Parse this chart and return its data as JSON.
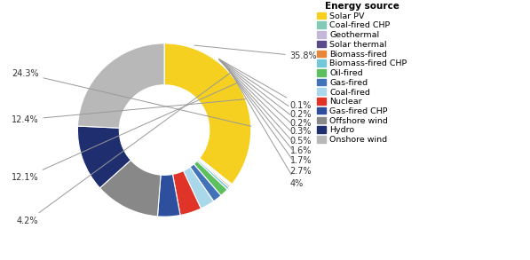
{
  "title": "Energy source",
  "labels": [
    "Solar PV",
    "Coal-fired CHP",
    "Geothermal",
    "Solar thermal",
    "Biomass-fired",
    "Biomass-fired CHP",
    "Oil-fired",
    "Gas-fired",
    "Coal-fired",
    "Nuclear",
    "Gas-fired CHP",
    "Offshore wind",
    "Hydro",
    "Onshore wind"
  ],
  "values": [
    35.8,
    0.1,
    0.2,
    0.2,
    0.3,
    0.5,
    1.6,
    1.7,
    2.7,
    4.0,
    4.2,
    12.1,
    12.4,
    24.3
  ],
  "colors": [
    "#F5D020",
    "#82C9B8",
    "#C4B8D8",
    "#5A4A8A",
    "#E8873A",
    "#72C8D8",
    "#5DBF5D",
    "#4272B8",
    "#A8D8EA",
    "#E03428",
    "#2E4E9E",
    "#888888",
    "#1E2E6E",
    "#B8B8B8"
  ],
  "pct_labels": [
    "35.8%",
    "0.1%",
    "0.2%",
    "0.2%",
    "0.3%",
    "0.5%",
    "1.6%",
    "1.7%",
    "2.7%",
    "4%",
    "4.2%",
    "12.1%",
    "12.4%",
    "24.3%"
  ],
  "label_sides": [
    "right",
    "right",
    "right",
    "right",
    "right",
    "right",
    "right",
    "right",
    "right",
    "right",
    "left",
    "left",
    "left",
    "left"
  ],
  "background_color": "#FFFFFF",
  "wedge_linewidth": 0.8,
  "wedge_edgecolor": "#FFFFFF"
}
